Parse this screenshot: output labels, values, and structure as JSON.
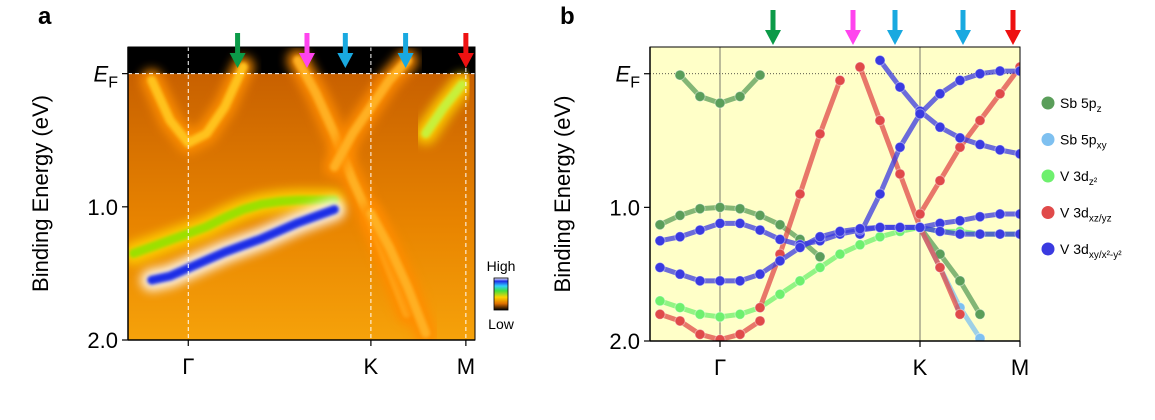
{
  "chart_data": [
    {
      "type": "heatmap",
      "panel_label": "a",
      "ylabel": "Binding Energy (eV)",
      "xlim": [
        -0.33,
        1.57
      ],
      "ylim": [
        2.0,
        -0.2
      ],
      "xticks": [
        {
          "value": 0,
          "label": "Γ"
        },
        {
          "value": 1,
          "label": "K"
        },
        {
          "value": 1.52,
          "label": "M"
        }
      ],
      "yticks": [
        {
          "value": 0,
          "label": "E",
          "label_sub": "F"
        },
        {
          "value": 1,
          "label": "1.0"
        },
        {
          "value": 2,
          "label": "2.0"
        }
      ],
      "x": [
        -0.3,
        -0.2,
        -0.1,
        0,
        0.1,
        0.2,
        0.3,
        0.4,
        0.5,
        0.6,
        0.7,
        0.8,
        0.9,
        1.0,
        1.1,
        1.2,
        1.3,
        1.4,
        1.5
      ],
      "bands": [
        {
          "color": "#9be000",
          "glow": "#ffd200",
          "values": [
            1.35,
            1.3,
            1.25,
            1.2,
            1.15,
            1.08,
            1.02,
            0.98,
            0.96,
            0.95,
            0.95,
            0.95,
            null,
            null,
            null,
            null,
            null,
            null,
            null
          ]
        },
        {
          "color": "#ffc21a",
          "glow": "#ff9000",
          "values": [
            null,
            0.05,
            0.35,
            0.52,
            0.45,
            0.25,
            -0.05,
            null,
            null,
            null,
            null,
            null,
            null,
            null,
            null,
            null,
            null,
            null,
            null
          ]
        },
        {
          "color": "#1e2ee6",
          "glow": "#ffffff",
          "values": [
            null,
            1.55,
            1.52,
            1.46,
            1.4,
            1.34,
            1.29,
            1.24,
            1.18,
            1.12,
            1.07,
            1.02,
            null,
            null,
            null,
            null,
            null,
            null,
            null
          ]
        },
        {
          "color": "#ffb020",
          "glow": "#ff8c00",
          "values": [
            null,
            null,
            null,
            null,
            null,
            null,
            null,
            null,
            null,
            -0.1,
            0.15,
            0.45,
            0.8,
            1.1,
            1.45,
            1.8,
            null,
            null,
            null
          ]
        },
        {
          "color": "#ffb020",
          "glow": "#ff8c00",
          "values": [
            null,
            null,
            null,
            null,
            null,
            null,
            null,
            null,
            null,
            null,
            null,
            0.7,
            0.45,
            0.25,
            0.05,
            -0.1,
            null,
            null,
            null
          ]
        },
        {
          "color": "#c8f03a",
          "glow": "#ffd200",
          "values": [
            null,
            null,
            null,
            null,
            null,
            null,
            null,
            null,
            null,
            null,
            null,
            null,
            null,
            null,
            null,
            null,
            0.45,
            0.25,
            0.08
          ]
        },
        {
          "color": "#ffb020",
          "glow": "#ff8c00",
          "values": [
            null,
            null,
            null,
            null,
            null,
            null,
            null,
            null,
            null,
            null,
            null,
            null,
            null,
            1.05,
            1.3,
            1.6,
            1.95,
            null,
            null
          ]
        }
      ],
      "arrows": [
        {
          "x": 0.27,
          "color": "#0c9a48"
        },
        {
          "x": 0.65,
          "color": "#ff44ee"
        },
        {
          "x": 0.86,
          "color": "#19a9e0"
        },
        {
          "x": 1.19,
          "color": "#19a9e0"
        },
        {
          "x": 1.52,
          "color": "#ee1111"
        }
      ],
      "colorbar": {
        "high": "High",
        "low": "Low"
      }
    },
    {
      "type": "bands",
      "panel_label": "b",
      "ylabel": "Binding Energy (eV)",
      "xlim": [
        -0.35,
        1.5
      ],
      "ylim": [
        2.0,
        -0.2
      ],
      "xticks": [
        {
          "value": 0,
          "label": "Γ"
        },
        {
          "value": 1,
          "label": "K"
        },
        {
          "value": 1.5,
          "label": "M"
        }
      ],
      "yticks": [
        {
          "value": 0,
          "label": "E",
          "label_sub": "F"
        },
        {
          "value": 1,
          "label": "1.0"
        },
        {
          "value": 2,
          "label": "2.0"
        }
      ],
      "x": [
        -0.3,
        -0.2,
        -0.1,
        0,
        0.1,
        0.2,
        0.3,
        0.4,
        0.5,
        0.6,
        0.7,
        0.8,
        0.9,
        1.0,
        1.1,
        1.2,
        1.3,
        1.4,
        1.5
      ],
      "series": [
        {
          "name": "Sb 5p",
          "name_sub": "z",
          "color": "#5a9e5a",
          "bands": [
            [
              null,
              0.01,
              0.17,
              0.22,
              0.17,
              0.01,
              null,
              null,
              null,
              null,
              null,
              null,
              null,
              null,
              null,
              null,
              null,
              null,
              null
            ],
            [
              1.13,
              1.06,
              1.01,
              1.0,
              1.01,
              1.06,
              1.13,
              1.24,
              1.37,
              null,
              null,
              null,
              null,
              null,
              null,
              null,
              null,
              null,
              null
            ],
            [
              null,
              null,
              null,
              null,
              null,
              null,
              null,
              null,
              null,
              null,
              null,
              null,
              null,
              1.15,
              1.35,
              1.55,
              1.8,
              null,
              null
            ]
          ]
        },
        {
          "name": "Sb 5p",
          "name_sub": "xy",
          "color": "#7ec0f0",
          "bands": [
            [
              null,
              null,
              null,
              null,
              null,
              null,
              null,
              null,
              null,
              null,
              null,
              null,
              null,
              1.15,
              1.45,
              1.75,
              1.98,
              null,
              null
            ]
          ]
        },
        {
          "name": "V 3d",
          "name_sub": "z²",
          "color": "#6ef06e",
          "bands": [
            [
              1.7,
              1.75,
              1.8,
              1.82,
              1.8,
              1.75,
              1.65,
              1.55,
              1.45,
              1.35,
              1.28,
              1.22,
              1.18,
              1.15,
              1.18,
              1.18,
              1.2,
              1.2,
              1.2
            ]
          ]
        },
        {
          "name": "V 3d",
          "name_sub": "xz/yz",
          "color": "#e04a4a",
          "bands": [
            [
              null,
              null,
              null,
              null,
              null,
              1.75,
              1.35,
              0.9,
              0.45,
              0.05,
              null,
              null,
              null,
              null,
              null,
              null,
              null,
              null,
              null
            ],
            [
              null,
              null,
              null,
              null,
              null,
              null,
              null,
              null,
              null,
              null,
              -0.05,
              0.35,
              0.75,
              1.15,
              1.45,
              1.8,
              null,
              null,
              null
            ],
            [
              null,
              null,
              null,
              null,
              null,
              null,
              null,
              null,
              null,
              null,
              null,
              null,
              null,
              1.05,
              0.8,
              0.55,
              0.35,
              0.15,
              -0.05
            ],
            [
              1.8,
              1.85,
              1.95,
              1.99,
              1.95,
              1.85,
              null,
              null,
              null,
              null,
              null,
              null,
              null,
              null,
              null,
              null,
              null,
              null,
              null
            ]
          ]
        },
        {
          "name": "V 3d",
          "name_sub": "xy/x²-y²",
          "color": "#3a3ae0",
          "bands": [
            [
              null,
              null,
              null,
              null,
              null,
              null,
              null,
              null,
              null,
              null,
              null,
              -0.1,
              0.1,
              0.28,
              0.4,
              0.48,
              0.53,
              0.57,
              0.6
            ],
            [
              null,
              null,
              null,
              null,
              null,
              null,
              null,
              null,
              null,
              null,
              1.2,
              0.9,
              0.55,
              0.3,
              0.15,
              0.05,
              0.0,
              -0.02,
              -0.02
            ],
            [
              1.25,
              1.22,
              1.17,
              1.12,
              1.12,
              1.17,
              1.24,
              1.28,
              1.25,
              1.2,
              1.17,
              1.15,
              1.15,
              1.15,
              1.12,
              1.1,
              1.07,
              1.05,
              1.05
            ],
            [
              1.45,
              1.5,
              1.55,
              1.55,
              1.55,
              1.5,
              1.4,
              1.3,
              1.22,
              1.18,
              1.16,
              1.15,
              1.15,
              1.15,
              1.18,
              1.2,
              1.2,
              1.2,
              1.2
            ]
          ]
        }
      ],
      "arrows": [
        {
          "x": 0.265,
          "color": "#0c9a48"
        },
        {
          "x": 0.665,
          "color": "#ff44ee"
        },
        {
          "x": 0.875,
          "color": "#19a9e0"
        },
        {
          "x": 1.215,
          "color": "#19a9e0"
        },
        {
          "x": 1.465,
          "color": "#ee1111"
        }
      ]
    }
  ]
}
